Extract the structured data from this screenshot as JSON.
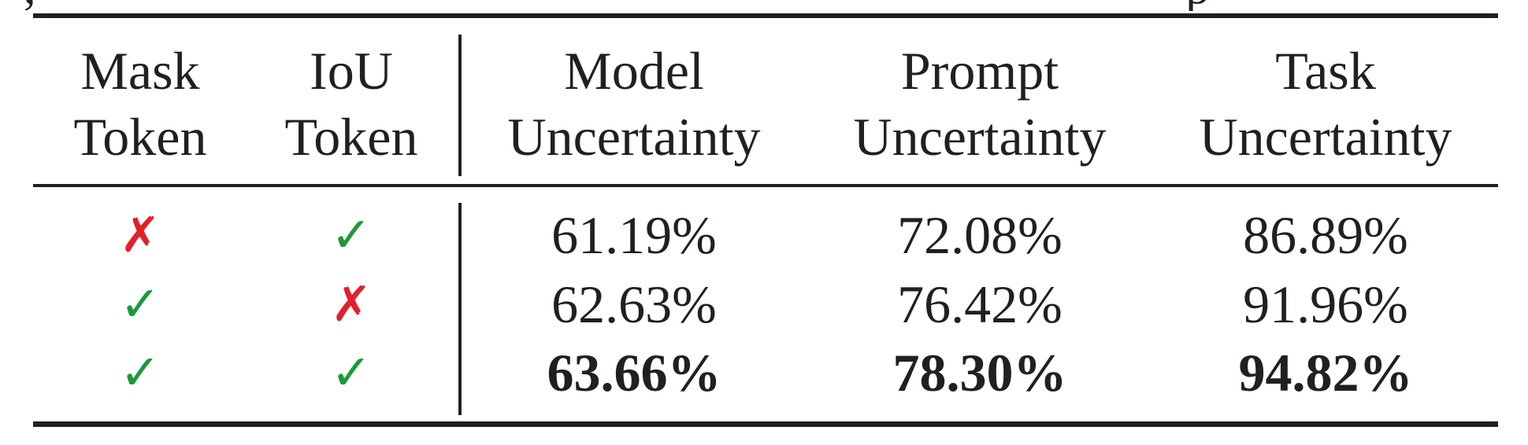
{
  "caption_fragment": {
    "left": ",",
    "right": "p"
  },
  "columns": [
    {
      "line1": "Mask",
      "line2": "Token"
    },
    {
      "line1": "IoU",
      "line2": "Token"
    },
    {
      "line1": "Model",
      "line2": "Uncertainty"
    },
    {
      "line1": "Prompt",
      "line2": "Uncertainty"
    },
    {
      "line1": "Task",
      "line2": "Uncertainty"
    }
  ],
  "symbols": {
    "check": "✓",
    "cross": "✗"
  },
  "colors": {
    "check": "#1a9a3a",
    "cross": "#e3202a",
    "text": "#231f20"
  },
  "rows": [
    {
      "mask_token": "✗",
      "iou_token": "✓",
      "model": "61.19%",
      "prompt": "72.08%",
      "task": "86.89%",
      "bold": false
    },
    {
      "mask_token": "✓",
      "iou_token": "✗",
      "model": "62.63%",
      "prompt": "76.42%",
      "task": "91.96%",
      "bold": false
    },
    {
      "mask_token": "✓",
      "iou_token": "✓",
      "model": "63.66%",
      "prompt": "78.30%",
      "task": "94.82%",
      "bold": true
    }
  ]
}
